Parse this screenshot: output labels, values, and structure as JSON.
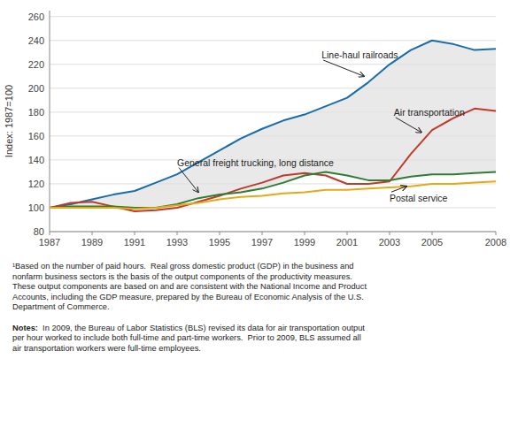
{
  "chart_data": {
    "type": "line",
    "ylabel": "Index: 1987=100",
    "x": [
      1987,
      1988,
      1989,
      1990,
      1991,
      1992,
      1993,
      1994,
      1995,
      1996,
      1997,
      1998,
      1999,
      2000,
      2001,
      2002,
      2003,
      2004,
      2005,
      2006,
      2007,
      2008
    ],
    "series": [
      {
        "color": "#1a6ca8",
        "values": [
          100,
          103,
          107,
          111,
          114,
          121,
          128,
          138,
          148,
          158,
          166,
          173,
          178,
          185,
          192,
          205,
          220,
          232,
          240,
          237,
          232,
          233
        ]
      },
      {
        "color": "#c0392b",
        "values": [
          100,
          104,
          105,
          101,
          97,
          98,
          100,
          105,
          110,
          116,
          121,
          127,
          129,
          127,
          120,
          120,
          122,
          145,
          165,
          175,
          183,
          181
        ]
      },
      {
        "color": "#2e7d32",
        "values": [
          100,
          101,
          101,
          101,
          100,
          100,
          103,
          108,
          111,
          113,
          116,
          121,
          127,
          130,
          127,
          123,
          123,
          126,
          128,
          128,
          129,
          130
        ]
      },
      {
        "color": "#e6a817",
        "values": [
          100,
          100,
          100,
          100,
          99,
          100,
          102,
          104,
          107,
          109,
          110,
          112,
          113,
          115,
          115,
          116,
          117,
          118,
          120,
          120,
          121,
          122
        ]
      }
    ],
    "xlim": [
      1987,
      2008
    ],
    "xticks": [
      1987,
      1989,
      1991,
      1993,
      1995,
      1997,
      1999,
      2001,
      2003,
      2005,
      2008
    ],
    "ylim": [
      80,
      265
    ],
    "yticks": [
      80,
      100,
      120,
      140,
      160,
      180,
      200,
      220,
      240,
      260
    ],
    "grid": true,
    "annotations": [
      {
        "text": "Line-haul railroads",
        "x": 2001.8,
        "y": 210,
        "text_x": 1999.8,
        "text_y": 228
      },
      {
        "text": "Air transportation",
        "x": 2004.5,
        "y": 163,
        "text_x": 2003.2,
        "text_y": 180
      },
      {
        "text": "General freight trucking, long distance",
        "x": 1994.0,
        "y": 113,
        "text_x": 1993.0,
        "text_y": 138
      },
      {
        "text": "Postal service",
        "x": 2003.8,
        "y": 118,
        "text_x": 2003.0,
        "text_y": 108
      }
    ],
    "footnote": "¹Based on the number of paid hours.  Real gross domestic product (GDP) in the business and\nnonfarm business sectors is the basis of the output components of the productivity measures.\nThese output components are based on and are consistent with the National Income and Product\nAccounts, including the GDP measure, prepared by the Bureau of Economic Analysis of the U.S.\nDepartment of Commerce.",
    "notes_label": "Notes:",
    "notes": "  In 2009, the Bureau of Labor Statistics (BLS) revised its data for air transportation output\nper hour worked to include both full-time and part-time workers.  Prior to 2009, BLS assumed all\nair transportation workers were full-time employees."
  }
}
